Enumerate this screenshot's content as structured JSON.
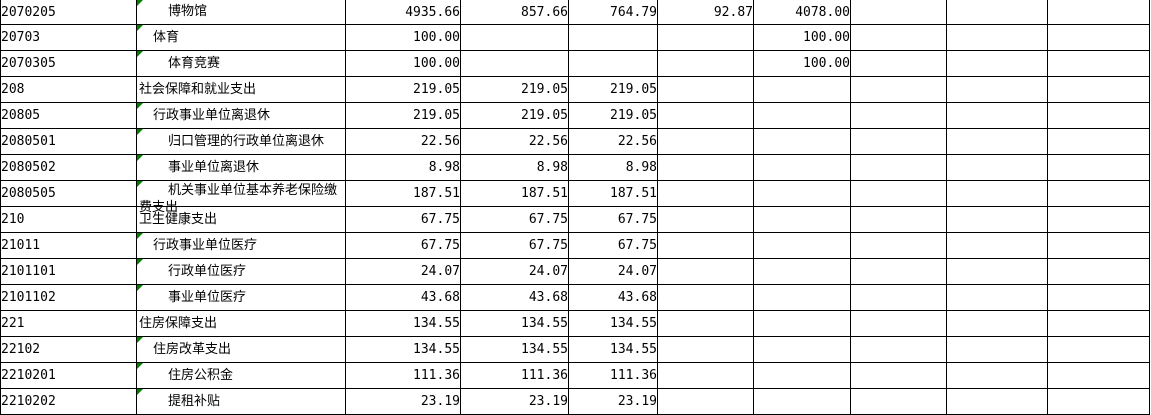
{
  "meta": {
    "app": "spreadsheet",
    "grid_line_color": "#000000",
    "background_color": "#ffffff",
    "error_marker_color": "#008000",
    "error_marker_meaning": "number-stored-as-text indicator"
  },
  "table": {
    "visible_columns": 10,
    "rows": [
      {
        "code": "2070205",
        "label": "博物馆",
        "indent": 2,
        "error_marker": true,
        "wrap": false,
        "values": [
          "4935.66",
          "857.66",
          "764.79",
          "92.87",
          "4078.00",
          "",
          "",
          ""
        ]
      },
      {
        "code": "20703",
        "label": "体育",
        "indent": 1,
        "error_marker": true,
        "wrap": false,
        "values": [
          "100.00",
          "",
          "",
          "",
          "100.00",
          "",
          "",
          ""
        ]
      },
      {
        "code": "2070305",
        "label": "体育竞赛",
        "indent": 2,
        "error_marker": true,
        "wrap": false,
        "values": [
          "100.00",
          "",
          "",
          "",
          "100.00",
          "",
          "",
          ""
        ]
      },
      {
        "code": "208",
        "label": "社会保障和就业支出",
        "indent": 0,
        "error_marker": false,
        "wrap": false,
        "values": [
          "219.05",
          "219.05",
          "219.05",
          "",
          "",
          "",
          "",
          ""
        ]
      },
      {
        "code": "20805",
        "label": "行政事业单位离退休",
        "indent": 1,
        "error_marker": true,
        "wrap": false,
        "values": [
          "219.05",
          "219.05",
          "219.05",
          "",
          "",
          "",
          "",
          ""
        ]
      },
      {
        "code": "2080501",
        "label": "归口管理的行政单位离退休",
        "indent": 2,
        "error_marker": true,
        "wrap": false,
        "values": [
          "22.56",
          "22.56",
          "22.56",
          "",
          "",
          "",
          "",
          ""
        ]
      },
      {
        "code": "2080502",
        "label": "事业单位离退休",
        "indent": 2,
        "error_marker": true,
        "wrap": false,
        "values": [
          "8.98",
          "8.98",
          "8.98",
          "",
          "",
          "",
          "",
          ""
        ]
      },
      {
        "code": "2080505",
        "label": "机关事业单位基本养老保险缴费支出",
        "indent": 2,
        "error_marker": true,
        "wrap": true,
        "values": [
          "187.51",
          "187.51",
          "187.51",
          "",
          "",
          "",
          "",
          ""
        ]
      },
      {
        "code": "210",
        "label": "卫生健康支出",
        "indent": 0,
        "error_marker": false,
        "wrap": false,
        "values": [
          "67.75",
          "67.75",
          "67.75",
          "",
          "",
          "",
          "",
          ""
        ]
      },
      {
        "code": "21011",
        "label": "行政事业单位医疗",
        "indent": 1,
        "error_marker": true,
        "wrap": false,
        "values": [
          "67.75",
          "67.75",
          "67.75",
          "",
          "",
          "",
          "",
          ""
        ]
      },
      {
        "code": "2101101",
        "label": "行政单位医疗",
        "indent": 2,
        "error_marker": true,
        "wrap": false,
        "values": [
          "24.07",
          "24.07",
          "24.07",
          "",
          "",
          "",
          "",
          ""
        ]
      },
      {
        "code": "2101102",
        "label": "事业单位医疗",
        "indent": 2,
        "error_marker": true,
        "wrap": false,
        "values": [
          "43.68",
          "43.68",
          "43.68",
          "",
          "",
          "",
          "",
          ""
        ]
      },
      {
        "code": "221",
        "label": "住房保障支出",
        "indent": 0,
        "error_marker": false,
        "wrap": false,
        "values": [
          "134.55",
          "134.55",
          "134.55",
          "",
          "",
          "",
          "",
          ""
        ]
      },
      {
        "code": "22102",
        "label": "住房改革支出",
        "indent": 1,
        "error_marker": true,
        "wrap": false,
        "values": [
          "134.55",
          "134.55",
          "134.55",
          "",
          "",
          "",
          "",
          ""
        ]
      },
      {
        "code": "2210201",
        "label": "住房公积金",
        "indent": 2,
        "error_marker": true,
        "wrap": false,
        "values": [
          "111.36",
          "111.36",
          "111.36",
          "",
          "",
          "",
          "",
          ""
        ]
      },
      {
        "code": "2210202",
        "label": "提租补贴",
        "indent": 2,
        "error_marker": true,
        "wrap": false,
        "values": [
          "23.19",
          "23.19",
          "23.19",
          "",
          "",
          "",
          "",
          ""
        ]
      }
    ]
  }
}
